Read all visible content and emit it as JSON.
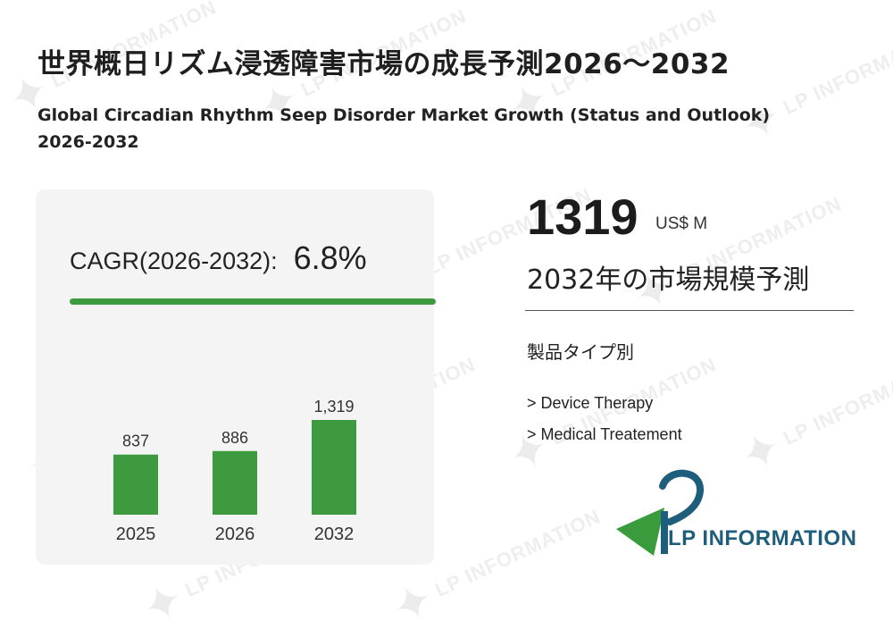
{
  "header": {
    "title_jp": "世界概日リズム浸透障害市場の成長予測2026～2032",
    "title_en": "Global Circadian Rhythm Seep Disorder Market Growth (Status and Outlook) 2026-2032"
  },
  "cagr": {
    "label": "CAGR(2026-2032):",
    "value": "6.8%"
  },
  "forecast": {
    "value": "1319",
    "unit": "US$ M",
    "label": "2032年の市場規模予測"
  },
  "segments": {
    "title": "製品タイプ別",
    "items": [
      "> Device Therapy",
      "> Medical Treatement"
    ]
  },
  "logo": {
    "text": "LP INFORMATION"
  },
  "watermark": {
    "text": "LP INFORMATION"
  },
  "colors": {
    "bar": "#3d9a3f",
    "logo_blue": "#1e5e7c",
    "logo_green": "#3a9b3c",
    "watermark": "#eeeeee"
  },
  "chart_data": {
    "type": "bar",
    "categories": [
      "2025",
      "2026",
      "2032"
    ],
    "values": [
      837,
      886,
      1319
    ],
    "value_labels": [
      "837",
      "886",
      "1,319"
    ],
    "title": "",
    "xlabel": "",
    "ylabel": "",
    "ylim": [
      0,
      1319
    ],
    "grid": false,
    "legend": "none"
  }
}
